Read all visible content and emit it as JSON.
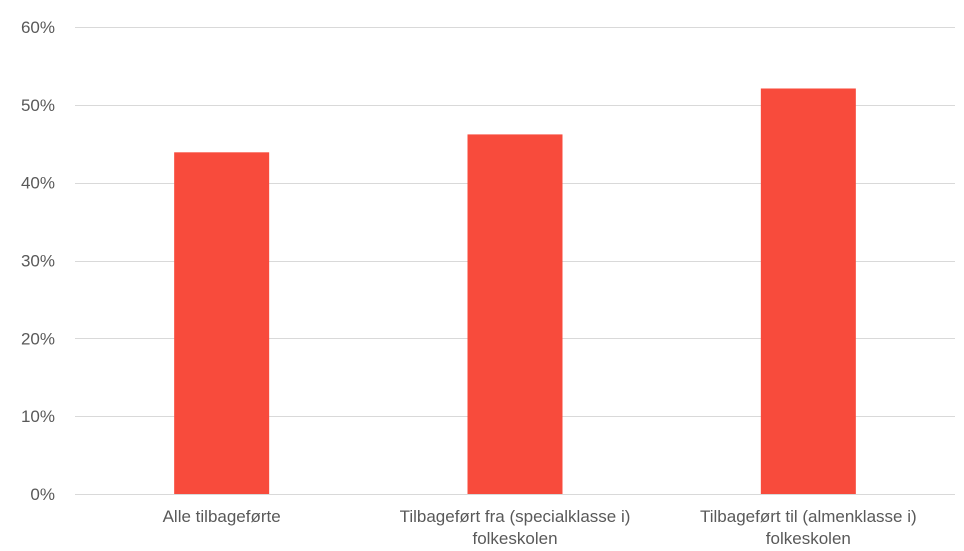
{
  "chart_data": {
    "type": "bar",
    "title": "",
    "xlabel": "",
    "ylabel": "",
    "categories": [
      [
        "Alle tilbageførte"
      ],
      [
        "Tilbageført fra (specialklasse i)",
        "folkeskolen"
      ],
      [
        "Tilbageført til (almenklasse i)",
        "folkeskolen"
      ]
    ],
    "values": [
      0.439,
      0.462,
      0.521
    ],
    "ylim": [
      0,
      0.6
    ],
    "y_ticks": [
      0,
      0.1,
      0.2,
      0.3,
      0.4,
      0.5,
      0.6
    ],
    "y_tick_labels": [
      "0%",
      "10%",
      "20%",
      "30%",
      "40%",
      "50%",
      "60%"
    ],
    "y_format": "percent",
    "grid": true,
    "legend": "none",
    "bar_color": "#f84b3c",
    "grid_color": "#d9d9d9",
    "text_color": "#595959"
  }
}
